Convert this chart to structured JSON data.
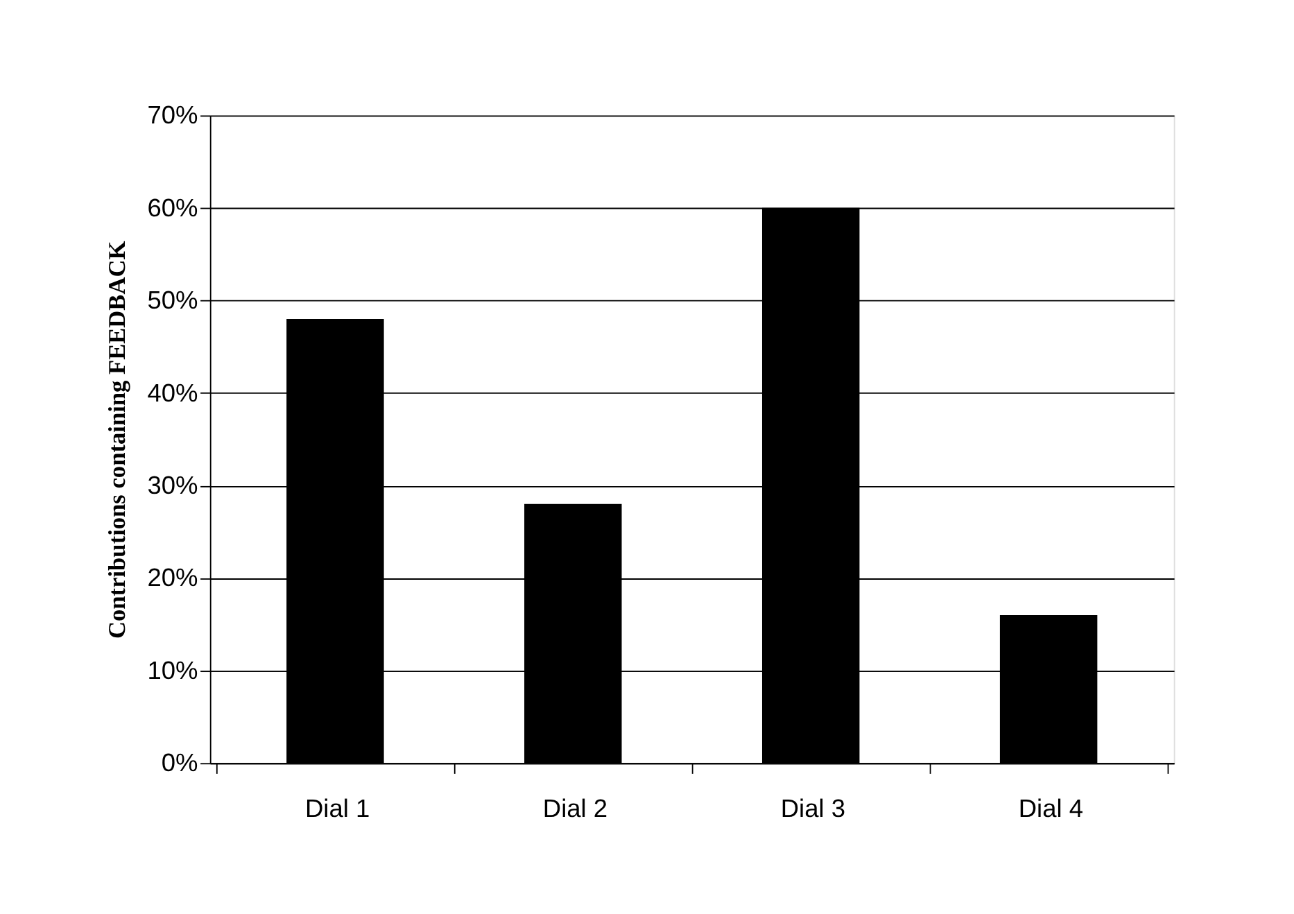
{
  "chart_data": {
    "type": "bar",
    "ylabel": "Contributions containing FEEDBACK",
    "categories": [
      "Dial 1",
      "Dial 2",
      "Dial 3",
      "Dial 4"
    ],
    "values": [
      48,
      28,
      60,
      16
    ],
    "color": "#000000",
    "ylim": [
      0,
      70
    ],
    "yticks": [
      {
        "value": 0,
        "label": "0%"
      },
      {
        "value": 10,
        "label": "10%"
      },
      {
        "value": 20,
        "label": "20%"
      },
      {
        "value": 30,
        "label": "30%"
      },
      {
        "value": 40,
        "label": "40%"
      },
      {
        "value": 50,
        "label": "50%"
      },
      {
        "value": 60,
        "label": "60%"
      },
      {
        "value": 70,
        "label": "70%"
      }
    ],
    "grid": "y"
  }
}
